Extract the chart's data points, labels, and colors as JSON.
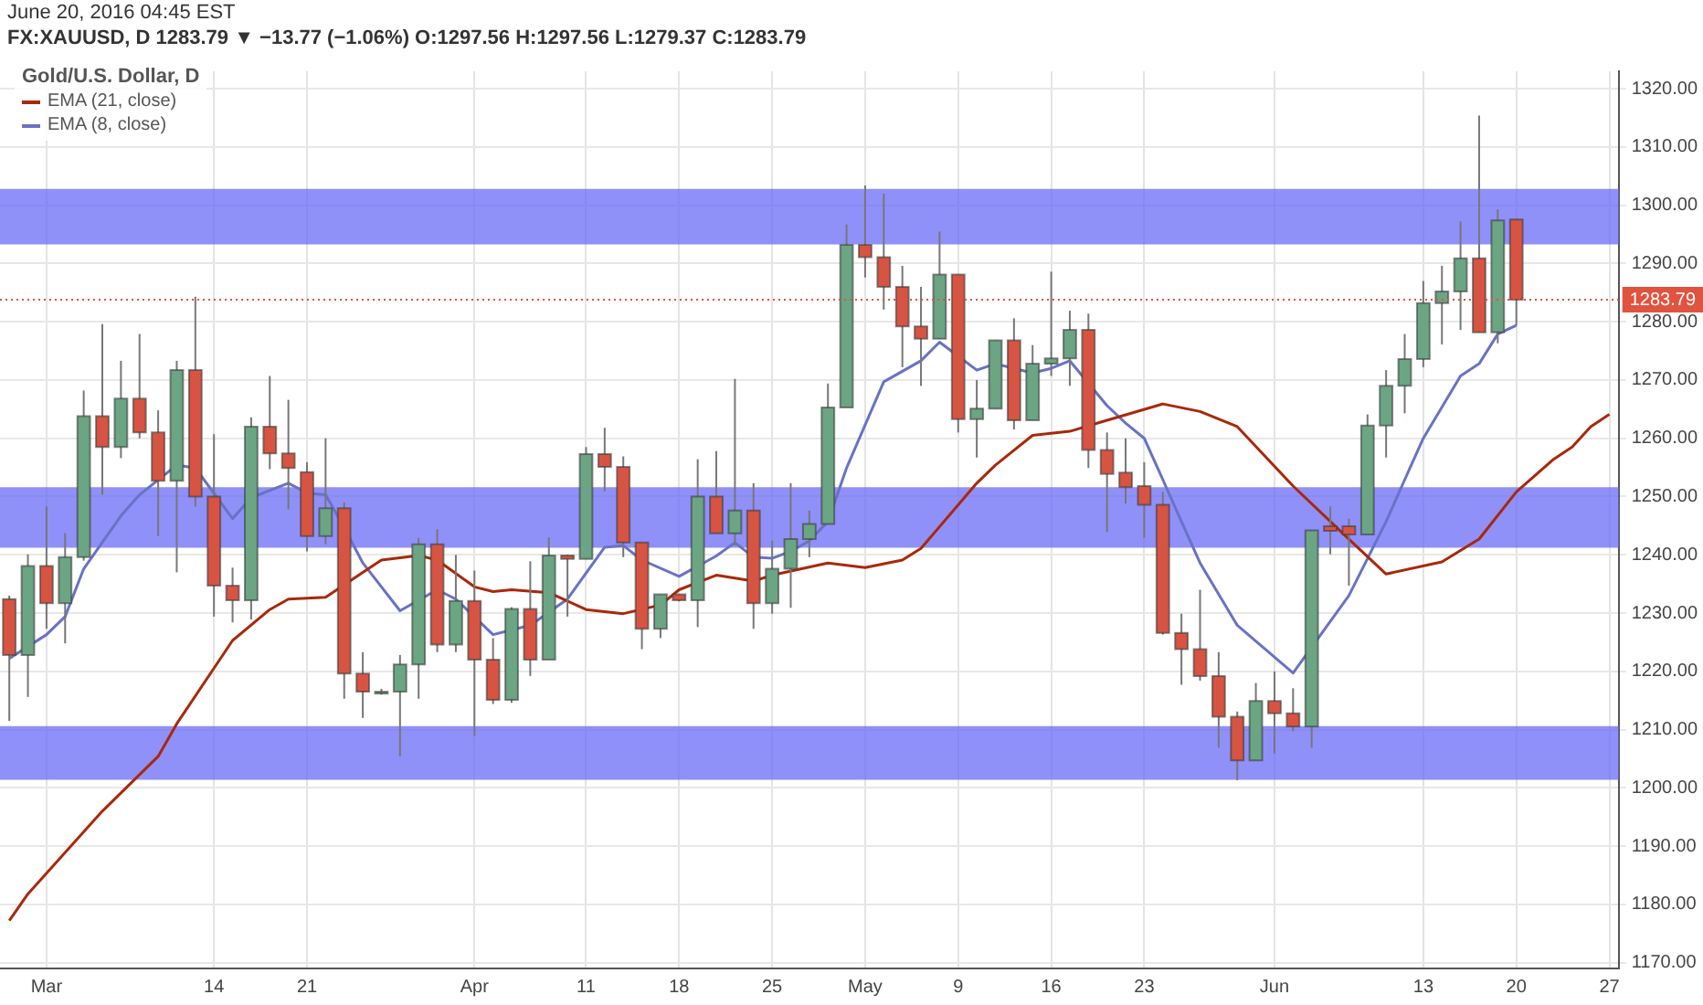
{
  "chart_data": {
    "type": "candlestick",
    "title": "Gold/U.S. Dollar, D",
    "subtitle": "FX:XAUUSD, D 1283.79 ▼ −13.77 (−1.06%) O:1297.56 H:1297.56 L:1279.37 C:1283.79",
    "annotations": [
      "June 20, 2016 04:45 EST"
    ],
    "categories": [
      null,
      null,
      "Mar",
      null,
      null,
      null,
      null,
      null,
      null,
      null,
      null,
      "14",
      null,
      null,
      null,
      null,
      "21",
      null,
      null,
      null,
      null,
      null,
      null,
      null,
      null,
      "Apr",
      null,
      null,
      null,
      null,
      null,
      "11",
      null,
      null,
      null,
      null,
      "18",
      null,
      null,
      null,
      null,
      "25",
      null,
      null,
      null,
      null,
      "May",
      null,
      null,
      null,
      null,
      "9",
      null,
      null,
      null,
      null,
      "16",
      null,
      null,
      null,
      null,
      "23",
      null,
      null,
      null,
      null,
      null,
      null,
      "Jun",
      null,
      null,
      null,
      null,
      null,
      null,
      null,
      "13",
      null,
      null,
      null,
      null,
      "20",
      null,
      null,
      null,
      null,
      "27"
    ],
    "ohlc": [
      [
        1232.4,
        1233,
        1211.5,
        1222.8
      ],
      [
        1222.8,
        1240.1,
        1215.6,
        1238.1
      ],
      [
        1238.1,
        1248.3,
        1227.3,
        1231.7
      ],
      [
        1231.7,
        1243.7,
        1224.8,
        1239.6
      ],
      [
        1239.6,
        1268.2,
        1239.0,
        1263.8
      ],
      [
        1263.8,
        1279.6,
        1250.3,
        1258.5
      ],
      [
        1258.5,
        1273.3,
        1256.6,
        1266.8
      ],
      [
        1266.8,
        1277.9,
        1260.0,
        1261.0
      ],
      [
        1261.0,
        1264.8,
        1243.2,
        1252.7
      ],
      [
        1252.7,
        1273.3,
        1237.0,
        1271.7
      ],
      [
        1271.7,
        1284.3,
        1248.3,
        1250.0
      ],
      [
        1250.0,
        1260.7,
        1229.4,
        1234.7
      ],
      [
        1234.7,
        1237.8,
        1228.4,
        1232.2
      ],
      [
        1232.2,
        1263.6,
        1228.9,
        1262.0
      ],
      [
        1262.0,
        1270.7,
        1254.7,
        1257.4
      ],
      [
        1257.4,
        1266.6,
        1247.8,
        1254.9
      ],
      [
        1254.2,
        1255.9,
        1240.6,
        1243.2
      ],
      [
        1243.2,
        1260.0,
        1241.8,
        1248.0
      ],
      [
        1248.0,
        1249.0,
        1215.3,
        1219.6
      ],
      [
        1219.6,
        1223.3,
        1212.0,
        1216.5
      ],
      [
        1216.5,
        1217.0,
        1216.0,
        1216.5
      ],
      [
        1216.5,
        1222.8,
        1205.4,
        1221.2
      ],
      [
        1221.2,
        1242.9,
        1215.3,
        1241.8
      ],
      [
        1241.8,
        1244.4,
        1223.3,
        1224.6
      ],
      [
        1224.6,
        1240.0,
        1223.3,
        1232.1
      ],
      [
        1232.1,
        1237.3,
        1208.9,
        1222.0
      ],
      [
        1222.0,
        1225.7,
        1214.4,
        1215.1
      ],
      [
        1215.1,
        1231.0,
        1214.6,
        1230.7
      ],
      [
        1230.7,
        1238.9,
        1219.2,
        1222.0
      ],
      [
        1222.0,
        1243.0,
        1222.0,
        1239.9
      ],
      [
        1239.9,
        1240.0,
        1229.4,
        1239.3
      ],
      [
        1239.3,
        1258.5,
        1239.3,
        1257.3
      ],
      [
        1257.3,
        1261.8,
        1250.9,
        1255.1
      ],
      [
        1255.1,
        1256.9,
        1239.6,
        1242.1
      ],
      [
        1242.1,
        1242.1,
        1223.8,
        1227.3
      ],
      [
        1227.3,
        1233.2,
        1225.7,
        1233.2
      ],
      [
        1233.2,
        1233.2,
        1232.0,
        1232.2
      ],
      [
        1232.2,
        1256.4,
        1227.6,
        1250.0
      ],
      [
        1250.0,
        1257.8,
        1243.7,
        1243.7
      ],
      [
        1243.7,
        1270.2,
        1241.6,
        1247.6
      ],
      [
        1247.6,
        1252.3,
        1227.3,
        1231.7
      ],
      [
        1231.7,
        1242.4,
        1229.9,
        1237.6
      ],
      [
        1237.6,
        1252.3,
        1230.9,
        1242.7
      ],
      [
        1242.7,
        1247.6,
        1239.6,
        1245.3
      ],
      [
        1245.3,
        1269.4,
        1245.3,
        1265.3
      ],
      [
        1265.3,
        1296.7,
        1265.3,
        1293.2
      ],
      [
        1293.2,
        1303.4,
        1287.6,
        1291.1
      ],
      [
        1291.1,
        1302.0,
        1282.1,
        1286.0
      ],
      [
        1286.0,
        1289.6,
        1272.2,
        1279.2
      ],
      [
        1279.2,
        1286.0,
        1269.0,
        1277.1
      ],
      [
        1277.1,
        1295.5,
        1277.1,
        1288.1
      ],
      [
        1288.1,
        1288.1,
        1261.0,
        1263.3
      ],
      [
        1263.3,
        1270.0,
        1256.7,
        1265.1
      ],
      [
        1265.1,
        1276.8,
        1265.1,
        1276.8
      ],
      [
        1276.8,
        1280.6,
        1261.5,
        1263.1
      ],
      [
        1263.1,
        1276.0,
        1263.1,
        1272.8
      ],
      [
        1272.8,
        1288.6,
        1270.7,
        1273.7
      ],
      [
        1273.7,
        1281.9,
        1269.0,
        1278.6
      ],
      [
        1278.6,
        1281.4,
        1254.9,
        1258.0
      ],
      [
        1258.0,
        1261.0,
        1243.9,
        1253.9
      ],
      [
        1254.1,
        1260.0,
        1248.8,
        1251.6
      ],
      [
        1251.8,
        1255.9,
        1242.9,
        1248.6
      ],
      [
        1248.6,
        1250.8,
        1226.3,
        1226.6
      ],
      [
        1226.6,
        1229.9,
        1217.7,
        1223.8
      ],
      [
        1223.8,
        1234.0,
        1218.4,
        1219.2
      ],
      [
        1219.2,
        1223.3,
        1206.9,
        1212.2
      ],
      [
        1212.2,
        1213.1,
        1201.3,
        1204.7
      ],
      [
        1204.7,
        1218.0,
        1204.7,
        1214.9
      ],
      [
        1214.9,
        1220.0,
        1205.9,
        1212.8
      ],
      [
        1212.8,
        1217.1,
        1209.7,
        1210.5
      ],
      [
        1210.5,
        1244.2,
        1206.9,
        1244.2
      ],
      [
        1244.9,
        1248.3,
        1240.1,
        1244.1
      ],
      [
        1244.9,
        1246.2,
        1234.7,
        1243.5
      ],
      [
        1243.5,
        1264.1,
        1243.5,
        1262.2
      ],
      [
        1262.2,
        1271.7,
        1256.7,
        1269.0
      ],
      [
        1269.0,
        1277.9,
        1264.3,
        1273.6
      ],
      [
        1273.6,
        1287.0,
        1272.2,
        1283.2
      ],
      [
        1283.2,
        1289.6,
        1276.1,
        1285.2
      ],
      [
        1285.2,
        1297.2,
        1278.6,
        1290.9
      ],
      [
        1290.9,
        1315.4,
        1278.2,
        1278.2
      ],
      [
        1278.2,
        1299.3,
        1276.3,
        1297.4
      ],
      [
        1297.56,
        1297.56,
        1279.37,
        1283.79
      ],
      null,
      null,
      null,
      null,
      null
    ],
    "colors": [
      "#d75442",
      "#6ba583",
      "#d75442",
      "#6ba583",
      "#6ba583",
      "#d75442",
      "#6ba583",
      "#d75442",
      "#d75442",
      "#6ba583",
      "#d75442",
      "#d75442",
      "#d75442",
      "#6ba583",
      "#d75442",
      "#d75442",
      "#d75442",
      "#6ba583",
      "#d75442",
      "#d75442",
      "#6ba583",
      "#6ba583",
      "#6ba583",
      "#d75442",
      "#6ba583",
      "#d75442",
      "#d75442",
      "#6ba583",
      "#d75442",
      "#6ba583",
      "#d75442",
      "#6ba583",
      "#d75442",
      "#d75442",
      "#d75442",
      "#6ba583",
      "#d75442",
      "#6ba583",
      "#d75442",
      "#6ba583",
      "#d75442",
      "#6ba583",
      "#6ba583",
      "#6ba583",
      "#6ba583",
      "#6ba583",
      "#d75442",
      "#d75442",
      "#d75442",
      "#d75442",
      "#6ba583",
      "#d75442",
      "#6ba583",
      "#6ba583",
      "#d75442",
      "#6ba583",
      "#6ba583",
      "#6ba583",
      "#d75442",
      "#d75442",
      "#d75442",
      "#d75442",
      "#d75442",
      "#d75442",
      "#d75442",
      "#d75442",
      "#d75442",
      "#6ba583",
      "#d75442",
      "#d75442",
      "#6ba583",
      "#d75442",
      "#d75442",
      "#6ba583",
      "#6ba583",
      "#6ba583",
      "#6ba583",
      "#6ba583",
      "#6ba583",
      "#d75442",
      "#6ba583",
      "#d75442",
      null,
      null,
      null,
      null,
      null
    ],
    "series": [
      {
        "name": "EMA (21, close)",
        "type": "line",
        "color": "#a8290a",
        "values": [
          1177.2,
          1181.8,
          null,
          null,
          null,
          1196,
          null,
          null,
          1205.4,
          1211,
          null,
          null,
          1225.3,
          null,
          1230.6,
          1232.4,
          null,
          1232.7,
          null,
          1237,
          1239.1,
          null,
          1239.9,
          1239.1,
          null,
          1234.5,
          1233.7,
          1234,
          null,
          1233.5,
          null,
          1230.6,
          null,
          1229.9,
          null,
          1231.4,
          1234,
          null,
          1236.5,
          null,
          1235.5,
          1236.5,
          null,
          null,
          1238.6,
          null,
          1237.8,
          null,
          1239.1,
          1241.1,
          null,
          null,
          1252.3,
          1255.4,
          null,
          1260.5,
          null,
          1261.2,
          null,
          1263.1,
          null,
          null,
          1265.9,
          null,
          1264.6,
          null,
          1262,
          null,
          null,
          1251.8,
          null,
          null,
          1242.7,
          null,
          1236.7,
          null,
          null,
          1238.8,
          null,
          1242.7,
          null,
          1250.8,
          null,
          1256.4,
          1258.5,
          1262,
          1264.1
        ]
      },
      {
        "name": "EMA (8, close)",
        "type": "line",
        "color": "#6873c4",
        "values": [
          1222.2,
          null,
          1226.3,
          1229.4,
          1237.6,
          null,
          1246.7,
          1250.3,
          null,
          1255.4,
          1254.9,
          null,
          1246.2,
          1249.8,
          null,
          1252.3,
          1250.6,
          1250.3,
          1244.7,
          1238.6,
          null,
          1230.4,
          1232.2,
          1234,
          1232.4,
          null,
          1226.3,
          1227.1,
          1227.9,
          null,
          1232.4,
          null,
          1241.3,
          1241.6,
          1239.1,
          null,
          1236.3,
          null,
          1239.8,
          1242.1,
          1239.6,
          1239.4,
          1240.6,
          1242.4,
          1245.7,
          1254.9,
          null,
          1269.7,
          null,
          1273.3,
          1276.5,
          1274.1,
          1271.7,
          1272.8,
          1272,
          1271.2,
          1272,
          1273.3,
          null,
          1265.6,
          1262.6,
          1260,
          1252.9,
          1245.7,
          1238.6,
          null,
          1227.9,
          null,
          null,
          1219.7,
          null,
          null,
          1233,
          null,
          1245.7,
          1252.9,
          1260,
          null,
          1270.7,
          1272.8,
          1277.9,
          1279.4,
          null,
          null,
          null,
          null,
          null
        ]
      }
    ],
    "ylim": [
      1169,
      1323
    ],
    "yticks": [
      {
        "value": 1170,
        "label": "1170.00"
      },
      {
        "value": 1180,
        "label": "1180.00"
      },
      {
        "value": 1190,
        "label": "1190.00"
      },
      {
        "value": 1200,
        "label": "1200.00"
      },
      {
        "value": 1210,
        "label": "1210.00"
      },
      {
        "value": 1220,
        "label": "1220.00"
      },
      {
        "value": 1230,
        "label": "1230.00"
      },
      {
        "value": 1240,
        "label": "1240.00"
      },
      {
        "value": 1250,
        "label": "1250.00"
      },
      {
        "value": 1260,
        "label": "1260.00"
      },
      {
        "value": 1270,
        "label": "1270.00"
      },
      {
        "value": 1280,
        "label": "1280.00"
      },
      {
        "value": 1290,
        "label": "1290.00"
      },
      {
        "value": 1300,
        "label": "1300.00"
      },
      {
        "value": 1310,
        "label": "1310.00"
      },
      {
        "value": 1320,
        "label": "1320.00"
      }
    ],
    "bands": [
      {
        "axis": "y",
        "from": 1293.3,
        "to": 1302.8,
        "color": "#6b6bf7"
      },
      {
        "axis": "y",
        "from": 1241.2,
        "to": 1251.6,
        "color": "#6b6bf7"
      },
      {
        "axis": "y",
        "from": 1201.4,
        "to": 1210.6,
        "color": "#6b6bf7"
      }
    ],
    "ref_lines": [
      {
        "axis": "y",
        "value": 1283.79,
        "label": "1283.79",
        "color": "#e0533f",
        "line_style": "dotted"
      }
    ],
    "grid": true,
    "legend": "top left",
    "marker": "none"
  }
}
